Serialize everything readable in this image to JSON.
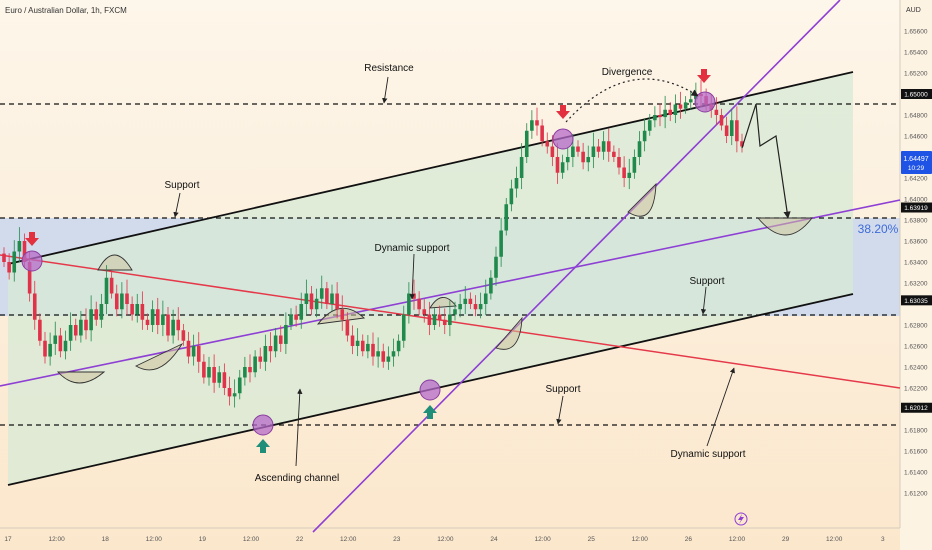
{
  "header": {
    "symbol": "Euro / Australian Dollar, 1h, FXCM"
  },
  "colors": {
    "background": "#fdf3e3",
    "channel_fill": "#d7ead6",
    "zone_fill": "#c9d7ee",
    "candle_up": "#1f8a4c",
    "candle_down": "#e0334a",
    "channel_line": "#111111",
    "dynamic_support_purple": "#8e3fd4",
    "dynamic_support_red": "#e5394a",
    "marker_red": "#e3303f",
    "marker_green": "#1f8f7a",
    "circle_fill": "#b56ac8",
    "arc_fill": "#cfc2a0",
    "price_badge": "#1e53e5"
  },
  "chart_data": {
    "type": "candlestick",
    "title": "Euro / Australian Dollar, 1h, FXCM",
    "currency": "AUD",
    "ylim": [
      1.61,
      1.658
    ],
    "y_ticks": [
      "1.65600",
      "1.65400",
      "1.65200",
      "1.64800",
      "1.64600",
      "1.64200",
      "1.64000",
      "1.63800",
      "1.63600",
      "1.63400",
      "1.63200",
      "1.62800",
      "1.62600",
      "1.62400",
      "1.62200",
      "1.61800",
      "1.61600",
      "1.61400",
      "1.61200"
    ],
    "x_ticks": [
      "17",
      "12:00",
      "18",
      "12:00",
      "19",
      "12:00",
      "22",
      "12:00",
      "23",
      "12:00",
      "24",
      "12:00",
      "25",
      "12:00",
      "26",
      "12:00",
      "29",
      "12:00",
      "3"
    ],
    "price_levels": [
      {
        "label": "1.65000",
        "value": 1.65
      },
      {
        "label": "1.63919",
        "value": 1.63919
      },
      {
        "label": "1.63035",
        "value": 1.63035
      },
      {
        "label": "1.62012",
        "value": 1.62012
      }
    ],
    "current_price": {
      "label": "1.64497",
      "value": 1.64497,
      "timer": "10:29"
    },
    "fib_label": "38.20%",
    "annotations": {
      "resistance": "Resistance",
      "divergence": "Divergence",
      "support_top": "Support",
      "dynamic_support_mid": "Dynamic support",
      "support_right": "Support",
      "support_bottom": "Support",
      "dynamic_support_bottom": "Dynamic support",
      "ascending_channel": "Ascending channel"
    },
    "closes": [
      1.634,
      1.633,
      1.635,
      1.636,
      1.634,
      1.631,
      1.6285,
      1.6265,
      1.625,
      1.6262,
      1.627,
      1.6255,
      1.6265,
      1.628,
      1.627,
      1.6285,
      1.6275,
      1.6295,
      1.6285,
      1.63,
      1.6325,
      1.631,
      1.6295,
      1.631,
      1.63,
      1.629,
      1.63,
      1.6285,
      1.628,
      1.6295,
      1.628,
      1.629,
      1.627,
      1.6285,
      1.6275,
      1.6265,
      1.625,
      1.626,
      1.6245,
      1.623,
      1.624,
      1.6225,
      1.6235,
      1.622,
      1.6212,
      1.6215,
      1.623,
      1.624,
      1.6235,
      1.625,
      1.6245,
      1.626,
      1.6255,
      1.627,
      1.6262,
      1.628,
      1.629,
      1.6285,
      1.63,
      1.631,
      1.6295,
      1.6305,
      1.6315,
      1.63,
      1.631,
      1.6295,
      1.6285,
      1.627,
      1.626,
      1.6265,
      1.6255,
      1.6262,
      1.625,
      1.6255,
      1.6245,
      1.625,
      1.6255,
      1.6265,
      1.629,
      1.631,
      1.6305,
      1.6295,
      1.629,
      1.628,
      1.629,
      1.6285,
      1.628,
      1.629,
      1.6295,
      1.63,
      1.6305,
      1.63,
      1.6295,
      1.63,
      1.631,
      1.6325,
      1.6345,
      1.637,
      1.6395,
      1.641,
      1.642,
      1.644,
      1.6465,
      1.6475,
      1.647,
      1.6455,
      1.645,
      1.644,
      1.6425,
      1.6435,
      1.644,
      1.645,
      1.6445,
      1.6435,
      1.644,
      1.645,
      1.6445,
      1.6455,
      1.6445,
      1.644,
      1.643,
      1.642,
      1.6425,
      1.644,
      1.6455,
      1.6465,
      1.6475,
      1.648,
      1.6478,
      1.6485,
      1.648,
      1.649,
      1.6486,
      1.6492,
      1.6495,
      1.65,
      1.6498,
      1.649,
      1.6485,
      1.648,
      1.647,
      1.646,
      1.6475,
      1.6455,
      1.645
    ]
  }
}
